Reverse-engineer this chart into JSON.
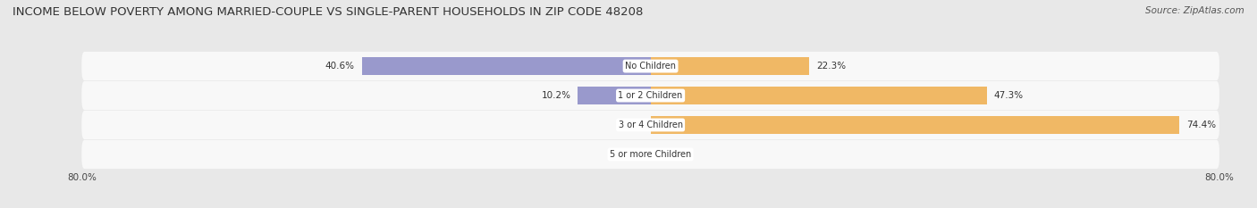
{
  "title": "INCOME BELOW POVERTY AMONG MARRIED-COUPLE VS SINGLE-PARENT HOUSEHOLDS IN ZIP CODE 48208",
  "source": "Source: ZipAtlas.com",
  "categories": [
    "No Children",
    "1 or 2 Children",
    "3 or 4 Children",
    "5 or more Children"
  ],
  "married_values": [
    40.6,
    10.2,
    0.0,
    0.0
  ],
  "single_values": [
    22.3,
    47.3,
    74.4,
    0.0
  ],
  "married_color": "#9999cc",
  "single_color": "#f0b865",
  "background_color": "#e8e8e8",
  "row_bg_color": "#f0f0f0",
  "xlim": 80.0,
  "title_fontsize": 9.5,
  "source_fontsize": 7.5,
  "label_fontsize": 7.5,
  "category_fontsize": 7.0
}
